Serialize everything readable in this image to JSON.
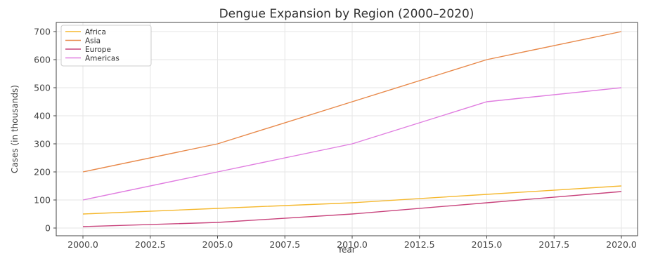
{
  "chart_data": {
    "type": "line",
    "title": "Dengue Expansion by Region (2000–2020)",
    "xlabel": "Year",
    "ylabel": "Cases (in thousands)",
    "x": [
      2000,
      2005,
      2010,
      2015,
      2020
    ],
    "xlim": [
      2000,
      2020
    ],
    "ylim": [
      0,
      700
    ],
    "xticks": [
      "2000.0",
      "2002.5",
      "2005.0",
      "2007.5",
      "2010.0",
      "2012.5",
      "2015.0",
      "2017.5",
      "2020.0"
    ],
    "yticks": [
      "0",
      "100",
      "200",
      "300",
      "400",
      "500",
      "600",
      "700"
    ],
    "grid": true,
    "legend_position": "top-left",
    "series": [
      {
        "name": "Africa",
        "color": "#f5b82e",
        "values": [
          50,
          70,
          90,
          120,
          150
        ]
      },
      {
        "name": "Asia",
        "color": "#e8894a",
        "values": [
          200,
          300,
          450,
          600,
          700
        ]
      },
      {
        "name": "Europe",
        "color": "#c8437c",
        "values": [
          5,
          20,
          50,
          90,
          130
        ]
      },
      {
        "name": "Americas",
        "color": "#e07ee0",
        "values": [
          100,
          200,
          300,
          450,
          500
        ]
      }
    ]
  }
}
